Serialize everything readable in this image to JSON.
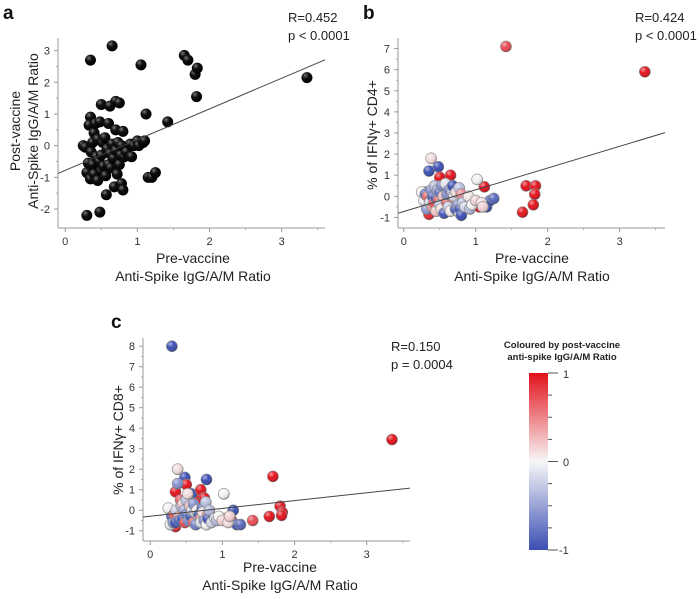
{
  "colors": {
    "negative": "#3b4fb3",
    "neutral": "#f2f2f2",
    "positive": "#e3121c",
    "line": "#444444",
    "black_points": "#111111"
  },
  "subjects_columns": [
    "pre_vaccine_ratio",
    "post_vaccine_ratio",
    "ifng_cd4_pct",
    "ifng_cd8_pct"
  ],
  "subjects": [
    [
      3.35,
      2.15,
      5.9,
      3.45
    ],
    [
      1.65,
      2.85,
      -0.75,
      -0.3
    ],
    [
      1.7,
      2.7,
      0.5,
      1.65
    ],
    [
      1.8,
      2.25,
      -0.4,
      0.2
    ],
    [
      1.83,
      2.45,
      0.5,
      -0.1
    ],
    [
      1.82,
      1.55,
      0.1,
      -0.25
    ],
    [
      1.05,
      2.55,
      -0.5,
      -0.4
    ],
    [
      0.65,
      3.15,
      1.0,
      0.7
    ],
    [
      0.35,
      2.7,
      -0.1,
      0.9
    ],
    [
      1.42,
      0.75,
      7.1,
      -0.5
    ],
    [
      1.12,
      1.0,
      0.45,
      -0.45
    ],
    [
      0.3,
      -2.2,
      0.2,
      8.0
    ],
    [
      0.48,
      -2.1,
      1.4,
      1.6
    ],
    [
      0.57,
      -1.55,
      -0.3,
      0.8
    ],
    [
      1.15,
      -1.0,
      -0.5,
      0.0
    ],
    [
      1.2,
      -1.0,
      -0.2,
      -0.7
    ],
    [
      1.25,
      -0.85,
      -0.1,
      -0.7
    ],
    [
      0.5,
      1.3,
      0.9,
      1.25
    ],
    [
      0.7,
      1.4,
      -0.2,
      1.0
    ],
    [
      0.75,
      1.35,
      0.3,
      0.6
    ],
    [
      0.62,
      1.25,
      0.2,
      0.35
    ],
    [
      0.35,
      0.9,
      -0.85,
      -0.8
    ],
    [
      0.25,
      0.0,
      0.2,
      0.1
    ],
    [
      0.28,
      -0.05,
      -0.2,
      -0.7
    ],
    [
      0.3,
      -0.85,
      0.1,
      -0.3
    ],
    [
      0.32,
      -0.55,
      -0.6,
      -0.6
    ],
    [
      0.33,
      0.65,
      0.0,
      -0.2
    ],
    [
      0.35,
      -1.05,
      1.2,
      -0.6
    ],
    [
      0.36,
      -0.2,
      -0.3,
      0.0
    ],
    [
      0.38,
      0.1,
      1.8,
      2.0
    ],
    [
      0.38,
      -0.6,
      0.3,
      1.3
    ],
    [
      0.4,
      0.4,
      -0.5,
      -0.3
    ],
    [
      0.4,
      -0.9,
      0.0,
      -0.5
    ],
    [
      0.42,
      0.7,
      -0.3,
      0.5
    ],
    [
      0.43,
      -0.35,
      0.5,
      0.2
    ],
    [
      0.45,
      -1.1,
      -0.1,
      -0.4
    ],
    [
      0.45,
      0.2,
      -0.7,
      0.3
    ],
    [
      0.47,
      -0.5,
      0.3,
      0.0
    ],
    [
      0.48,
      0.75,
      -0.2,
      -0.6
    ],
    [
      0.5,
      -0.3,
      -0.4,
      0.5
    ],
    [
      0.5,
      -0.8,
      0.2,
      -0.2
    ],
    [
      0.52,
      0.1,
      -0.6,
      0.8
    ],
    [
      0.53,
      -0.65,
      0.5,
      -0.5
    ],
    [
      0.55,
      0.25,
      0.0,
      0.2
    ],
    [
      0.56,
      -0.95,
      -0.8,
      -0.3
    ],
    [
      0.58,
      -0.1,
      0.6,
      0.0
    ],
    [
      0.6,
      0.7,
      -0.3,
      -0.6
    ],
    [
      0.6,
      -0.6,
      0.1,
      0.3
    ],
    [
      0.62,
      -0.25,
      -0.5,
      -0.1
    ],
    [
      0.63,
      -0.7,
      0.3,
      -0.7
    ],
    [
      0.65,
      0.05,
      -0.7,
      0.0
    ],
    [
      0.67,
      -0.4,
      0.2,
      -0.3
    ],
    [
      0.68,
      -1.3,
      0.5,
      -0.2
    ],
    [
      0.7,
      0.5,
      -0.1,
      -0.4
    ],
    [
      0.7,
      -0.15,
      0.0,
      -0.6
    ],
    [
      0.72,
      -0.9,
      -0.6,
      0.1
    ],
    [
      0.73,
      0.1,
      0.2,
      -0.1
    ],
    [
      0.75,
      -0.6,
      -0.4,
      -0.5
    ],
    [
      0.77,
      -0.3,
      0.4,
      0.4
    ],
    [
      0.78,
      0.0,
      -0.8,
      -0.7
    ],
    [
      0.78,
      -1.2,
      -0.6,
      1.5
    ],
    [
      0.8,
      0.45,
      0.1,
      -0.2
    ],
    [
      0.8,
      -1.4,
      -0.9,
      -0.4
    ],
    [
      0.82,
      -0.35,
      -0.3,
      0.0
    ],
    [
      0.85,
      -0.2,
      -0.5,
      -0.6
    ],
    [
      0.9,
      0.05,
      0.0,
      -0.4
    ],
    [
      0.92,
      -0.35,
      -0.6,
      -0.5
    ],
    [
      0.95,
      0.0,
      -0.4,
      -0.3
    ],
    [
      1.0,
      0.15,
      -0.2,
      -0.5
    ],
    [
      1.02,
      0.0,
      0.8,
      0.8
    ],
    [
      1.08,
      0.1,
      -0.3,
      -0.6
    ],
    [
      1.1,
      0.15,
      -0.5,
      -0.3
    ]
  ],
  "chart_data": [
    {
      "type": "scatter",
      "panel": "a",
      "title": "",
      "xlabel": "Pre-vaccine",
      "xlabel2": "Anti-Spike IgG/A/M Ratio",
      "ylabel": "Post-vaccine",
      "ylabel2": "Anti-Spike IgG/A/M Ratio",
      "y_column": 1,
      "colored": false,
      "xlim": [
        -0.1,
        3.6
      ],
      "ylim": [
        -2.6,
        3.4
      ],
      "xticks": [
        0,
        1,
        2,
        3
      ],
      "yticks": [
        -2,
        -1,
        0,
        1,
        2,
        3
      ],
      "stat_r": "R=0.452",
      "stat_p": "p < 0.0001",
      "fit": {
        "slope": 0.97,
        "intercept": -0.78
      }
    },
    {
      "type": "scatter",
      "panel": "b",
      "title": "",
      "xlabel": "Pre-vaccine",
      "xlabel2": "Anti-Spike IgG/A/M Ratio",
      "ylabel": "% of IFNγ+ CD4+",
      "y_column": 2,
      "colored": true,
      "xlim": [
        -0.08,
        3.63
      ],
      "ylim": [
        -1.5,
        7.5
      ],
      "xticks": [
        0,
        1,
        2,
        3
      ],
      "yticks": [
        -1,
        0,
        1,
        2,
        3,
        4,
        5,
        6,
        7
      ],
      "stat_r": "R=0.424",
      "stat_p": "p < 0.0001",
      "fit": {
        "slope": 1.03,
        "intercept": -0.72
      }
    },
    {
      "type": "scatter",
      "panel": "c",
      "title": "",
      "xlabel": "Pre-vaccine",
      "xlabel2": "Anti-Spike IgG/A/M Ratio",
      "ylabel": "% of IFNγ+ CD8+",
      "y_column": 3,
      "colored": true,
      "xlim": [
        -0.1,
        3.6
      ],
      "ylim": [
        -1.5,
        8.4
      ],
      "xticks": [
        0,
        1,
        2,
        3
      ],
      "yticks": [
        -1,
        0,
        1,
        2,
        3,
        4,
        5,
        6,
        7,
        8
      ],
      "stat_r": "R=0.150",
      "stat_p": "p = 0.0004",
      "fit": {
        "slope": 0.38,
        "intercept": -0.29
      }
    }
  ],
  "colorbar": {
    "title1": "Coloured by post-vaccine",
    "title2": "anti-spike IgG/A/M Ratio",
    "max_label": "1",
    "mid_label": "0",
    "min_label": "-1",
    "range": [
      -1,
      1
    ]
  }
}
